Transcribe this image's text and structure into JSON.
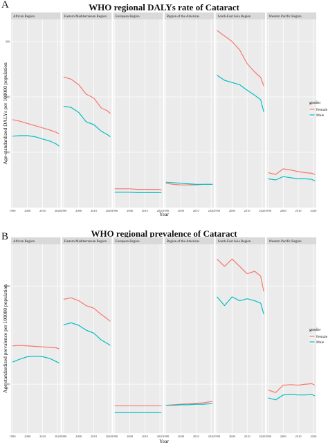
{
  "chart_data": [
    {
      "type": "line",
      "panel_letter": "A",
      "title": "WHO regional DALYs rate of Cataract",
      "xlabel": "Year",
      "ylabel": "Age-standardized DALYs per 100000 population",
      "ylim": [
        0,
        340
      ],
      "yticks": [
        100,
        200,
        300
      ],
      "xlim": [
        1990,
        2021
      ],
      "xticks": [
        1990,
        2000,
        2010,
        2020
      ],
      "legend": {
        "title": "gender",
        "position": "right",
        "entries": [
          "Female",
          "Male"
        ]
      },
      "colors": {
        "Female": "#F8766D",
        "Male": "#00BFC4"
      },
      "x": [
        1990,
        1995,
        2000,
        2005,
        2010,
        2015,
        2019,
        2021
      ],
      "facets": [
        {
          "name": "African Region",
          "series": [
            {
              "name": "Female",
              "values": [
                159,
                156,
                152,
                148,
                144,
                140,
                136,
                133
              ]
            },
            {
              "name": "Male",
              "values": [
                129,
                130,
                130,
                128,
                124,
                120,
                115,
                111
              ]
            }
          ]
        },
        {
          "name": "Eastern Mediterranean Region",
          "series": [
            {
              "name": "Female",
              "values": [
                236,
                232,
                222,
                205,
                198,
                180,
                175,
                170
              ]
            },
            {
              "name": "Male",
              "values": [
                183,
                181,
                172,
                155,
                150,
                138,
                132,
                128
              ]
            }
          ]
        },
        {
          "name": "European Region",
          "series": [
            {
              "name": "Female",
              "values": [
                34,
                34,
                34,
                33,
                33,
                33,
                33,
                32
              ]
            },
            {
              "name": "Male",
              "values": [
                28,
                28,
                28,
                27,
                27,
                27,
                27,
                27
              ]
            }
          ]
        },
        {
          "name": "Region of the Americas",
          "series": [
            {
              "name": "Female",
              "values": [
                44,
                42,
                41,
                41,
                41,
                42,
                42,
                42
              ]
            },
            {
              "name": "Male",
              "values": [
                46,
                45,
                44,
                43,
                42,
                42,
                42,
                42
              ]
            }
          ]
        },
        {
          "name": "South-East Asia Region",
          "series": [
            {
              "name": "Female",
              "values": [
                320,
                310,
                300,
                285,
                260,
                245,
                235,
                220
              ]
            },
            {
              "name": "Male",
              "values": [
                239,
                230,
                226,
                222,
                212,
                203,
                195,
                173
              ]
            }
          ]
        },
        {
          "name": "Western Pacific Region",
          "series": [
            {
              "name": "Female",
              "values": [
                63,
                60,
                70,
                68,
                65,
                63,
                62,
                60
              ]
            },
            {
              "name": "Male",
              "values": [
                52,
                50,
                56,
                54,
                52,
                52,
                51,
                48
              ]
            }
          ]
        }
      ]
    },
    {
      "type": "line",
      "panel_letter": "B",
      "title": "WHO regional prevalence of Cataract",
      "xlabel": "Year",
      "ylabel": "Age-standardized prevalence per 100000 population",
      "ylim": [
        0,
        3850
      ],
      "yticks": [
        1000,
        3000
      ],
      "xlim": [
        1990,
        2021
      ],
      "xticks": [
        1990,
        2000,
        2010,
        2020
      ],
      "legend": {
        "title": "gender",
        "position": "right",
        "entries": [
          "Female",
          "Male"
        ]
      },
      "colors": {
        "Female": "#F8766D",
        "Male": "#00BFC4"
      },
      "x": [
        1990,
        1995,
        2000,
        2005,
        2010,
        2015,
        2019,
        2021
      ],
      "facets": [
        {
          "name": "African Region",
          "series": [
            {
              "name": "Female",
              "values": [
                1780,
                1790,
                1780,
                1770,
                1760,
                1750,
                1740,
                1720
              ]
            },
            {
              "name": "Male",
              "values": [
                1450,
                1510,
                1560,
                1570,
                1560,
                1520,
                1460,
                1430
              ]
            }
          ]
        },
        {
          "name": "Eastern Mediterranean Region",
          "series": [
            {
              "name": "Female",
              "values": [
                2730,
                2760,
                2700,
                2600,
                2550,
                2420,
                2330,
                2280
              ]
            },
            {
              "name": "Male",
              "values": [
                2210,
                2250,
                2200,
                2100,
                2040,
                1900,
                1830,
                1790
              ]
            }
          ]
        },
        {
          "name": "European Region",
          "series": [
            {
              "name": "Female",
              "values": [
                560,
                560,
                560,
                560,
                560,
                560,
                560,
                560
              ]
            },
            {
              "name": "Male",
              "values": [
                420,
                420,
                420,
                420,
                420,
                420,
                420,
                420
              ]
            }
          ]
        },
        {
          "name": "Region of the Americas",
          "series": [
            {
              "name": "Female",
              "values": [
                570,
                580,
                590,
                600,
                610,
                620,
                640,
                650
              ]
            },
            {
              "name": "Male",
              "values": [
                570,
                570,
                580,
                580,
                590,
                590,
                600,
                600
              ]
            }
          ]
        },
        {
          "name": "South-East Asia Region",
          "series": [
            {
              "name": "Female",
              "values": [
                3550,
                3400,
                3550,
                3400,
                3250,
                3300,
                3200,
                2890
              ]
            },
            {
              "name": "Male",
              "values": [
                2780,
                2600,
                2780,
                2700,
                2740,
                2700,
                2650,
                2430
              ]
            }
          ]
        },
        {
          "name": "Western Pacific Region",
          "series": [
            {
              "name": "Female",
              "values": [
                880,
                830,
                980,
                990,
                980,
                1000,
                1010,
                980
              ]
            },
            {
              "name": "Male",
              "values": [
                720,
                680,
                780,
                790,
                780,
                780,
                790,
                760
              ]
            }
          ]
        }
      ]
    }
  ]
}
